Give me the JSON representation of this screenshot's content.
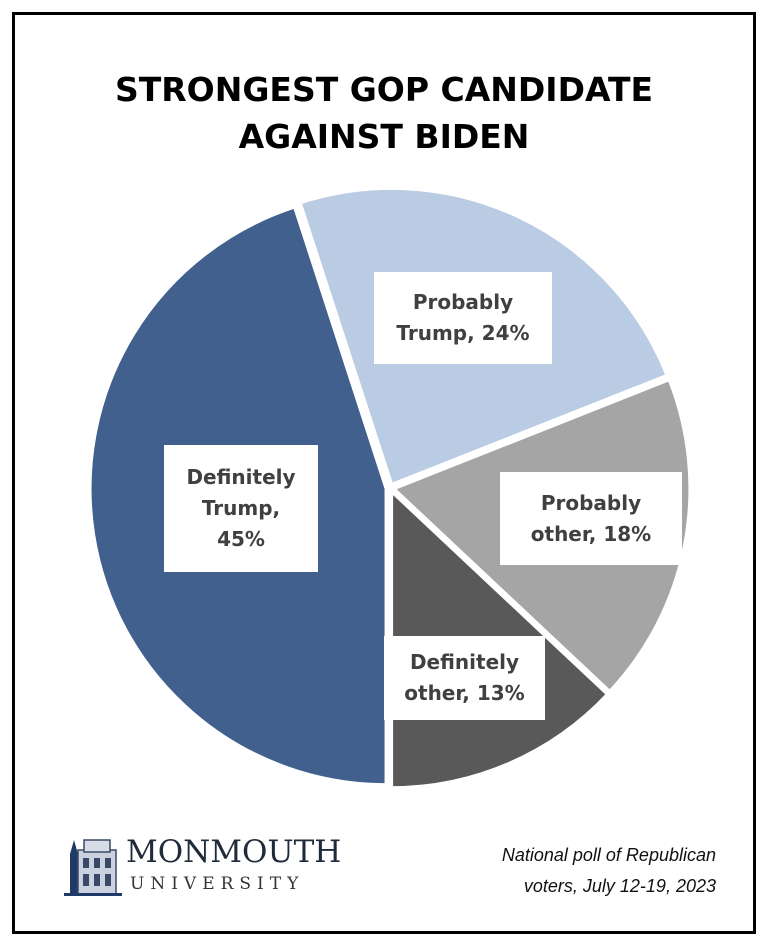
{
  "chart_data": {
    "type": "pie",
    "title": "STRONGEST GOP CANDIDATE AGAINST BIDEN",
    "title_lines": [
      "STRONGEST GOP CANDIDATE",
      "AGAINST BIDEN"
    ],
    "slices": [
      {
        "name": "Probably Trump",
        "value": 24,
        "color": "#b9cce4",
        "label_lines": [
          "Probably",
          "Trump, 24%"
        ]
      },
      {
        "name": "Probably other",
        "value": 18,
        "color": "#a5a5a5",
        "label_lines": [
          "Probably",
          "other, 18%"
        ]
      },
      {
        "name": "Definitely other",
        "value": 13,
        "color": "#595959",
        "label_lines": [
          "Definitely",
          "other, 13%"
        ]
      },
      {
        "name": "Definitely Trump",
        "value": 45,
        "color": "#41608e",
        "label_lines": [
          "Definitely",
          "Trump,",
          "45%"
        ]
      }
    ],
    "unit": "%"
  },
  "logo": {
    "main": "MONMOUTH",
    "sub": "UNIVERSITY"
  },
  "note": {
    "line1": "National poll of Republican",
    "line2": "voters,  July 12-19, 2023"
  }
}
